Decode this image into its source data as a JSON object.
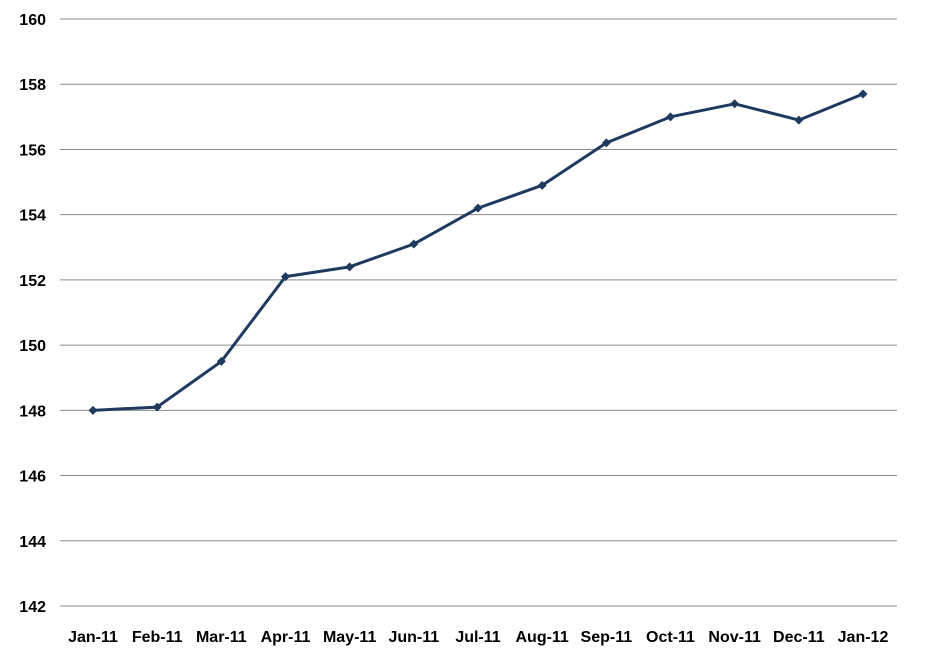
{
  "chart_data": {
    "type": "line",
    "title": "",
    "xlabel": "",
    "ylabel": "",
    "categories": [
      "Jan-11",
      "Feb-11",
      "Mar-11",
      "Apr-11",
      "May-11",
      "Jun-11",
      "Jul-11",
      "Aug-11",
      "Sep-11",
      "Oct-11",
      "Nov-11",
      "Dec-11",
      "Jan-12"
    ],
    "series": [
      {
        "values": [
          148.0,
          148.1,
          149.5,
          152.1,
          152.4,
          153.1,
          154.2,
          154.9,
          156.2,
          157.0,
          157.4,
          156.9,
          157.7
        ],
        "color": "#1f3a5f",
        "marker": "diamond"
      }
    ],
    "ylim": [
      142,
      160
    ],
    "yticks": [
      142,
      144,
      146,
      148,
      150,
      152,
      154,
      156,
      158,
      160
    ],
    "ytick_labels": [
      "142",
      "144",
      "146",
      "148",
      "150",
      "152",
      "154",
      "156",
      "158",
      "160"
    ],
    "grid": true,
    "grid_color": "#8c8c8c",
    "legend": "none"
  }
}
